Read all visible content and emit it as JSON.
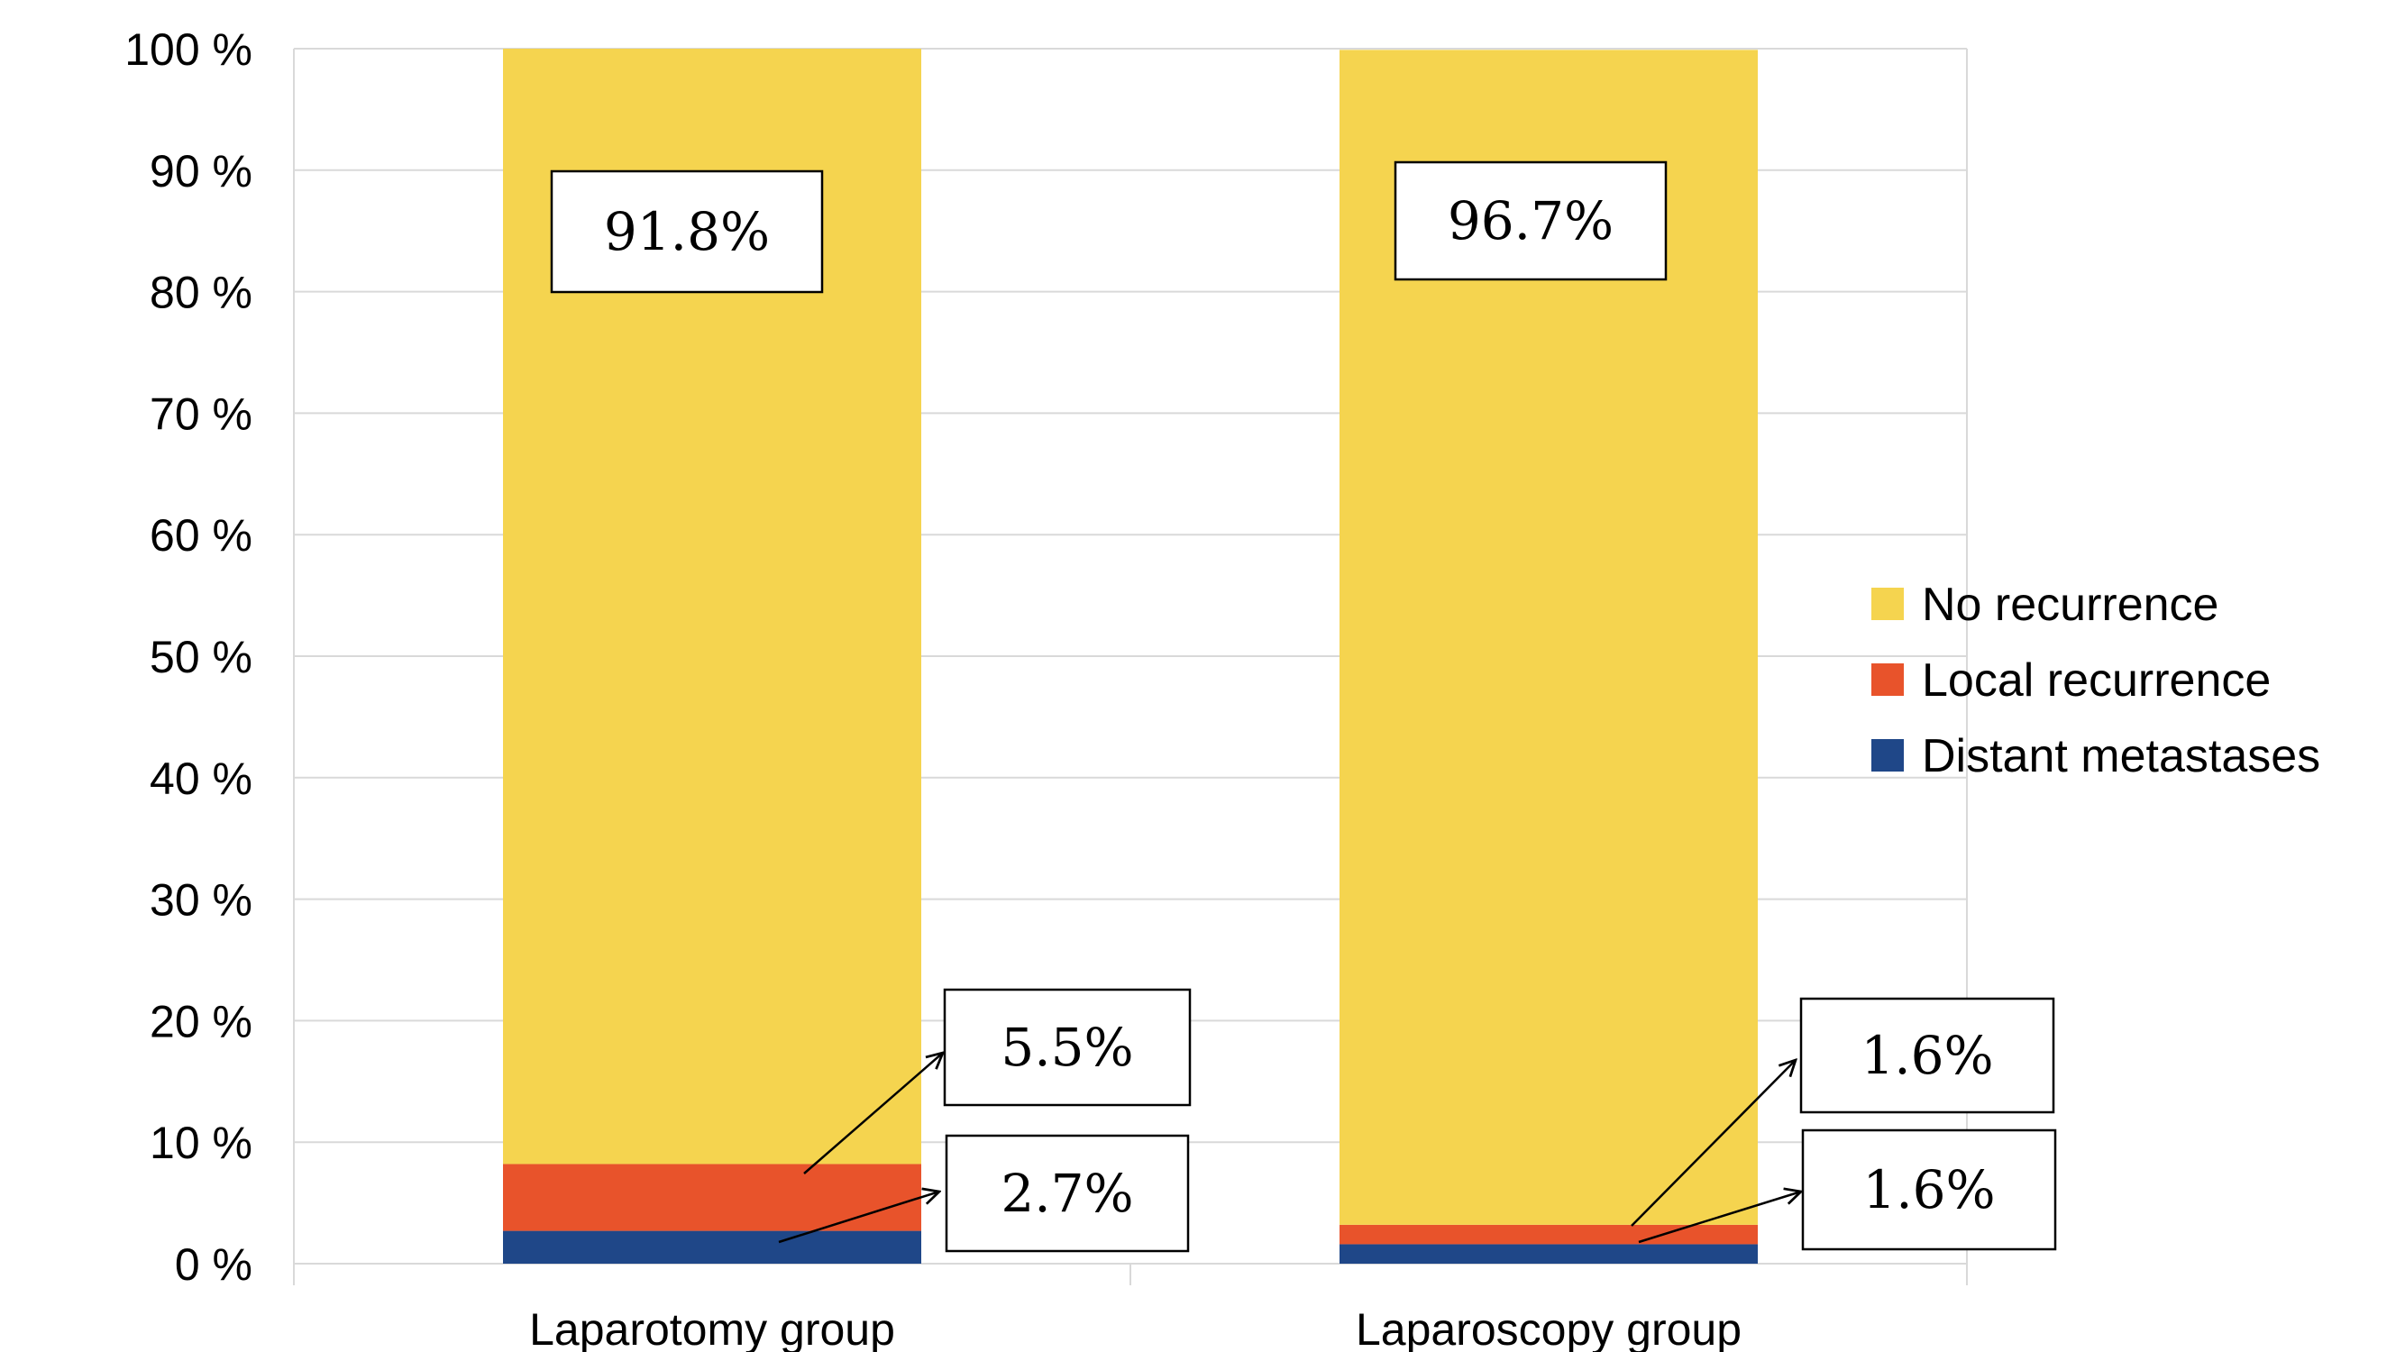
{
  "chart_data": {
    "type": "bar",
    "stacked": true,
    "categories": [
      "Laparotomy group",
      "Laparoscopy group"
    ],
    "series": [
      {
        "name": "Distant metastases",
        "values": [
          2.7,
          1.6
        ],
        "color": "#1f4788"
      },
      {
        "name": "Local recurrence",
        "values": [
          5.5,
          1.6
        ],
        "color": "#e8532b"
      },
      {
        "name": "No recurrence",
        "values": [
          91.8,
          96.7
        ],
        "color": "#f5d44f"
      }
    ],
    "ylim": [
      0,
      100
    ],
    "yticks": [
      0,
      10,
      20,
      30,
      40,
      50,
      60,
      70,
      80,
      90,
      100
    ],
    "ytick_labels": [
      "0 %",
      "10 %",
      "20 %",
      "30 %",
      "40 %",
      "50 %",
      "60 %",
      "70 %",
      "80 %",
      "90 %",
      "100 %"
    ],
    "grid": true,
    "legend_position": "right",
    "legend_order": [
      "No recurrence",
      "Local recurrence",
      "Distant metastases"
    ],
    "annotations": [
      {
        "category": "Laparotomy group",
        "series": "No recurrence",
        "text": "91.8%"
      },
      {
        "category": "Laparotomy group",
        "series": "Local recurrence",
        "text": "5.5%"
      },
      {
        "category": "Laparotomy group",
        "series": "Distant metastases",
        "text": "2.7%"
      },
      {
        "category": "Laparoscopy group",
        "series": "No recurrence",
        "text": "96.7%"
      },
      {
        "category": "Laparoscopy group",
        "series": "Local recurrence",
        "text": "1.6%"
      },
      {
        "category": "Laparoscopy group",
        "series": "Distant metastases",
        "text": "1.6%"
      }
    ]
  }
}
